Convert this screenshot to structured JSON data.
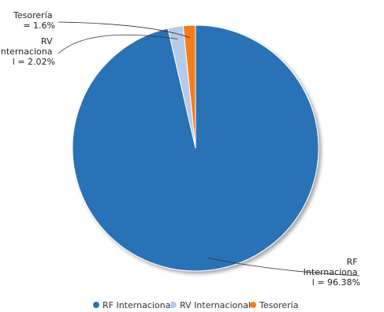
{
  "chart_data": {
    "type": "pie",
    "title": "",
    "legend_position": "bottom",
    "slices": [
      {
        "name": "RF Internacional",
        "value": 96.38,
        "color": "#2c72b6",
        "label_lines": [
          "RF",
          "Internaciona",
          "l = 96.38%"
        ]
      },
      {
        "name": "RV Internacional",
        "value": 2.02,
        "color": "#b6cbea",
        "label_lines": [
          "RV",
          "Internaciona",
          "l = 2.02%"
        ]
      },
      {
        "name": "Tesorería",
        "value": 1.6,
        "color": "#f57d1f",
        "label_lines": [
          "Tesorería",
          "= 1.6%"
        ]
      }
    ]
  }
}
